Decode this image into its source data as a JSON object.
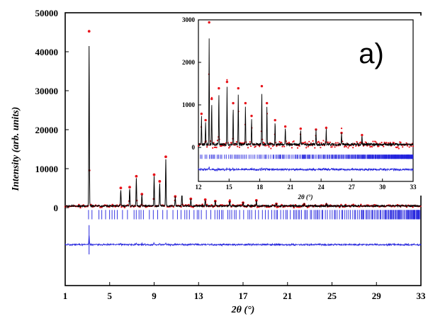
{
  "chart_data": [
    {
      "type": "line",
      "role": "main",
      "panel_label": "",
      "xlabel": "2θ (°)",
      "ylabel": "Intensity (arb. units)",
      "xlim": [
        1,
        33
      ],
      "ylim": [
        -20000,
        50000
      ],
      "x_ticks": [
        1,
        5,
        9,
        13,
        17,
        21,
        25,
        29,
        33
      ],
      "x_tick_labels": [
        "1",
        "5",
        "9",
        "13",
        "17",
        "21",
        "25",
        "29",
        "33"
      ],
      "y_ticks": [
        0,
        10000,
        20000,
        30000,
        40000,
        50000
      ],
      "y_tick_labels": [
        "0",
        "10000",
        "20000",
        "30000",
        "40000",
        "50000"
      ],
      "colors": {
        "observed": "#e8141b",
        "calculated": "#000000",
        "bragg": "#2222dd",
        "difference": "#2222dd"
      },
      "peaks": [
        {
          "x": 3.15,
          "y_obs": 45000,
          "y_calc": 41000
        },
        {
          "x": 6.0,
          "y_obs": 4800,
          "y_calc": 4300
        },
        {
          "x": 6.8,
          "y_obs": 5000,
          "y_calc": 4600
        },
        {
          "x": 7.4,
          "y_obs": 7800,
          "y_calc": 7200
        },
        {
          "x": 7.9,
          "y_obs": 3200,
          "y_calc": 2900
        },
        {
          "x": 9.0,
          "y_obs": 8200,
          "y_calc": 7500
        },
        {
          "x": 9.5,
          "y_obs": 6500,
          "y_calc": 5900
        },
        {
          "x": 10.05,
          "y_obs": 12800,
          "y_calc": 12000
        },
        {
          "x": 10.9,
          "y_obs": 2600,
          "y_calc": 2300
        },
        {
          "x": 11.5,
          "y_obs": 4300,
          "y_calc": 3900
        },
        {
          "x": 12.3,
          "y_obs": 2000,
          "y_calc": 1800
        },
        {
          "x": 13.6,
          "y_obs": 1800,
          "y_calc": 1600
        },
        {
          "x": 14.5,
          "y_obs": 1400,
          "y_calc": 1250
        },
        {
          "x": 15.8,
          "y_obs": 1300,
          "y_calc": 1150
        },
        {
          "x": 17.0,
          "y_obs": 1000,
          "y_calc": 900
        },
        {
          "x": 18.2,
          "y_obs": 1600,
          "y_calc": 1400
        },
        {
          "x": 20.0,
          "y_obs": 700,
          "y_calc": 620
        },
        {
          "x": 22.5,
          "y_obs": 600,
          "y_calc": 530
        },
        {
          "x": 24.5,
          "y_obs": 550,
          "y_calc": 480
        }
      ]
    },
    {
      "type": "line",
      "role": "inset",
      "panel_label": "a)",
      "xlabel": "2θ (°)",
      "ylabel": "",
      "xlim": [
        12,
        33
      ],
      "ylim": [
        -800,
        3000
      ],
      "x_ticks": [
        12,
        15,
        18,
        21,
        24,
        27,
        30,
        33
      ],
      "x_tick_labels": [
        "12",
        "15",
        "18",
        "21",
        "24",
        "27",
        "30",
        "33"
      ],
      "y_ticks": [
        0,
        1000,
        2000,
        3000
      ],
      "y_tick_labels": [
        "0",
        "1000",
        "2000",
        "3000"
      ],
      "peaks": [
        {
          "x": 12.3,
          "y_obs": 750,
          "y_calc": 650
        },
        {
          "x": 12.7,
          "y_obs": 600,
          "y_calc": 520
        },
        {
          "x": 13.05,
          "y_obs": 2900,
          "y_calc": 2500
        },
        {
          "x": 13.3,
          "y_obs": 1100,
          "y_calc": 950
        },
        {
          "x": 14.0,
          "y_obs": 1350,
          "y_calc": 1200
        },
        {
          "x": 14.8,
          "y_obs": 1500,
          "y_calc": 1350
        },
        {
          "x": 15.4,
          "y_obs": 1000,
          "y_calc": 880
        },
        {
          "x": 15.9,
          "y_obs": 1350,
          "y_calc": 1200
        },
        {
          "x": 16.6,
          "y_obs": 1000,
          "y_calc": 880
        },
        {
          "x": 17.2,
          "y_obs": 700,
          "y_calc": 620
        },
        {
          "x": 18.2,
          "y_obs": 1400,
          "y_calc": 1250
        },
        {
          "x": 18.7,
          "y_obs": 1000,
          "y_calc": 880
        },
        {
          "x": 19.5,
          "y_obs": 600,
          "y_calc": 520
        },
        {
          "x": 20.5,
          "y_obs": 450,
          "y_calc": 400
        },
        {
          "x": 22.0,
          "y_obs": 400,
          "y_calc": 350
        },
        {
          "x": 23.5,
          "y_obs": 380,
          "y_calc": 330
        },
        {
          "x": 24.5,
          "y_obs": 420,
          "y_calc": 370
        },
        {
          "x": 26.0,
          "y_obs": 300,
          "y_calc": 260
        },
        {
          "x": 28.0,
          "y_obs": 250,
          "y_calc": 220
        }
      ]
    }
  ]
}
